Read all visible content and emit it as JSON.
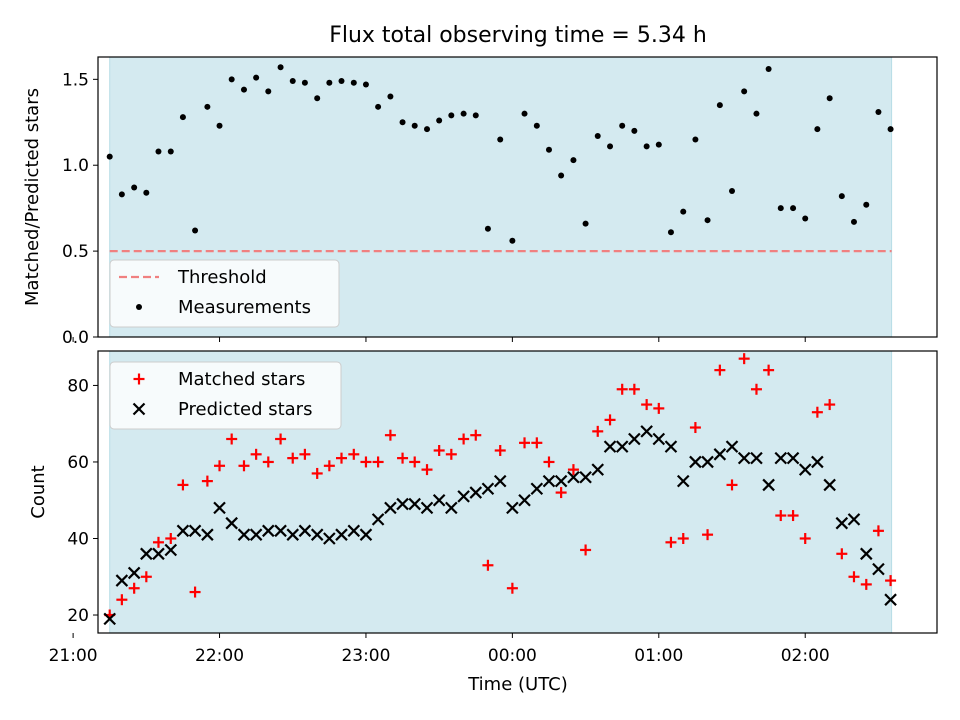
{
  "chart_data": [
    {
      "type": "scatter",
      "title": "Flux total observing time = 5.34 h",
      "xlabel": "",
      "ylabel": "Matched/Predicted stars",
      "xlim": [
        -0.08,
        5.65
      ],
      "ylim": [
        0.0,
        1.63
      ],
      "yticks": [
        0.0,
        0.5,
        1.0,
        1.5
      ],
      "ytick_labels": [
        "0.0",
        "0.5",
        "1.0",
        "1.5"
      ],
      "shaded_region": [
        0.0,
        5.34
      ],
      "threshold": 0.5,
      "legend_position": "lower-left",
      "legend": [
        {
          "label": "Threshold",
          "style": "dashed-line",
          "color": "#f08080"
        },
        {
          "label": "Measurements",
          "style": "dot",
          "color": "#000000"
        }
      ],
      "series": [
        {
          "name": "Measurements",
          "x": [
            0.0,
            0.083,
            0.167,
            0.25,
            0.333,
            0.417,
            0.5,
            0.583,
            0.667,
            0.75,
            0.833,
            0.917,
            1.0,
            1.083,
            1.167,
            1.25,
            1.333,
            1.417,
            1.5,
            1.583,
            1.667,
            1.75,
            1.833,
            1.917,
            2.0,
            2.083,
            2.167,
            2.25,
            2.333,
            2.417,
            2.5,
            2.583,
            2.667,
            2.75,
            2.833,
            2.917,
            3.0,
            3.083,
            3.167,
            3.25,
            3.333,
            3.417,
            3.5,
            3.583,
            3.667,
            3.75,
            3.833,
            3.917,
            4.0,
            4.083,
            4.167,
            4.25,
            4.333,
            4.417,
            4.5,
            4.583,
            4.667,
            4.75,
            4.833,
            4.917,
            5.0,
            5.083,
            5.167,
            5.25,
            5.333
          ],
          "y": [
            1.05,
            0.83,
            0.87,
            0.84,
            1.08,
            1.08,
            1.28,
            0.62,
            1.34,
            1.23,
            1.5,
            1.44,
            1.51,
            1.43,
            1.57,
            1.49,
            1.48,
            1.39,
            1.48,
            1.49,
            1.48,
            1.47,
            1.34,
            1.4,
            1.25,
            1.23,
            1.21,
            1.26,
            1.29,
            1.3,
            1.29,
            0.63,
            1.15,
            0.56,
            1.3,
            1.23,
            1.09,
            0.94,
            1.03,
            0.66,
            1.17,
            1.11,
            1.23,
            1.2,
            1.11,
            1.12,
            0.61,
            0.73,
            1.15,
            0.68,
            1.35,
            0.85,
            1.43,
            1.3,
            1.56,
            0.75,
            0.75,
            0.69,
            1.21,
            1.39,
            0.82,
            0.67,
            0.77,
            1.31,
            1.21
          ]
        }
      ]
    },
    {
      "type": "scatter",
      "title": "",
      "xlabel": "Time (UTC)",
      "ylabel": "Count",
      "xlim": [
        -0.08,
        5.65
      ],
      "ylim": [
        15.3,
        89.0
      ],
      "yticks": [
        20,
        40,
        60,
        80
      ],
      "ytick_labels": [
        "20",
        "40",
        "60",
        "80"
      ],
      "xticks": [
        -0.25,
        0.75,
        1.75,
        2.75,
        3.75,
        4.75
      ],
      "xtick_labels": [
        "21:00",
        "22:00",
        "23:00",
        "00:00",
        "01:00",
        "02:00"
      ],
      "shaded_region": [
        0.0,
        5.34
      ],
      "legend_position": "upper-left",
      "legend": [
        {
          "label": "Matched stars",
          "style": "plus",
          "color": "#ff0000"
        },
        {
          "label": "Predicted stars",
          "style": "x",
          "color": "#000000"
        }
      ],
      "series": [
        {
          "name": "Matched stars",
          "x": [
            0.0,
            0.083,
            0.167,
            0.25,
            0.333,
            0.417,
            0.5,
            0.583,
            0.667,
            0.75,
            0.833,
            0.917,
            1.0,
            1.083,
            1.167,
            1.25,
            1.333,
            1.417,
            1.5,
            1.583,
            1.667,
            1.75,
            1.833,
            1.917,
            2.0,
            2.083,
            2.167,
            2.25,
            2.333,
            2.417,
            2.5,
            2.583,
            2.667,
            2.75,
            2.833,
            2.917,
            3.0,
            3.083,
            3.167,
            3.25,
            3.333,
            3.417,
            3.5,
            3.583,
            3.667,
            3.75,
            3.833,
            3.917,
            4.0,
            4.083,
            4.167,
            4.25,
            4.333,
            4.417,
            4.5,
            4.583,
            4.667,
            4.75,
            4.833,
            4.917,
            5.0,
            5.083,
            5.167,
            5.25,
            5.333
          ],
          "y": [
            20,
            24,
            27,
            30,
            39,
            40,
            54,
            26,
            55,
            59,
            66,
            59,
            62,
            60,
            66,
            61,
            62,
            57,
            59,
            61,
            62,
            60,
            60,
            67,
            61,
            60,
            58,
            63,
            62,
            66,
            67,
            33,
            63,
            27,
            65,
            65,
            60,
            52,
            58,
            37,
            68,
            71,
            79,
            79,
            75,
            74,
            39,
            40,
            69,
            41,
            84,
            54,
            87,
            79,
            84,
            46,
            46,
            40,
            73,
            75,
            36,
            30,
            28,
            42,
            29
          ]
        },
        {
          "name": "Predicted stars",
          "x": [
            0.0,
            0.083,
            0.167,
            0.25,
            0.333,
            0.417,
            0.5,
            0.583,
            0.667,
            0.75,
            0.833,
            0.917,
            1.0,
            1.083,
            1.167,
            1.25,
            1.333,
            1.417,
            1.5,
            1.583,
            1.667,
            1.75,
            1.833,
            1.917,
            2.0,
            2.083,
            2.167,
            2.25,
            2.333,
            2.417,
            2.5,
            2.583,
            2.667,
            2.75,
            2.833,
            2.917,
            3.0,
            3.083,
            3.167,
            3.25,
            3.333,
            3.417,
            3.5,
            3.583,
            3.667,
            3.75,
            3.833,
            3.917,
            4.0,
            4.083,
            4.167,
            4.25,
            4.333,
            4.417,
            4.5,
            4.583,
            4.667,
            4.75,
            4.833,
            4.917,
            5.0,
            5.083,
            5.167,
            5.25,
            5.333
          ],
          "y": [
            19,
            29,
            31,
            36,
            36,
            37,
            42,
            42,
            41,
            48,
            44,
            41,
            41,
            42,
            42,
            41,
            42,
            41,
            40,
            41,
            42,
            41,
            45,
            48,
            49,
            49,
            48,
            50,
            48,
            51,
            52,
            53,
            55,
            48,
            50,
            53,
            55,
            55,
            56,
            56,
            58,
            64,
            64,
            66,
            68,
            66,
            64,
            55,
            60,
            60,
            62,
            64,
            61,
            61,
            54,
            61,
            61,
            58,
            60,
            54,
            44,
            45,
            36,
            32,
            24
          ]
        }
      ]
    }
  ]
}
